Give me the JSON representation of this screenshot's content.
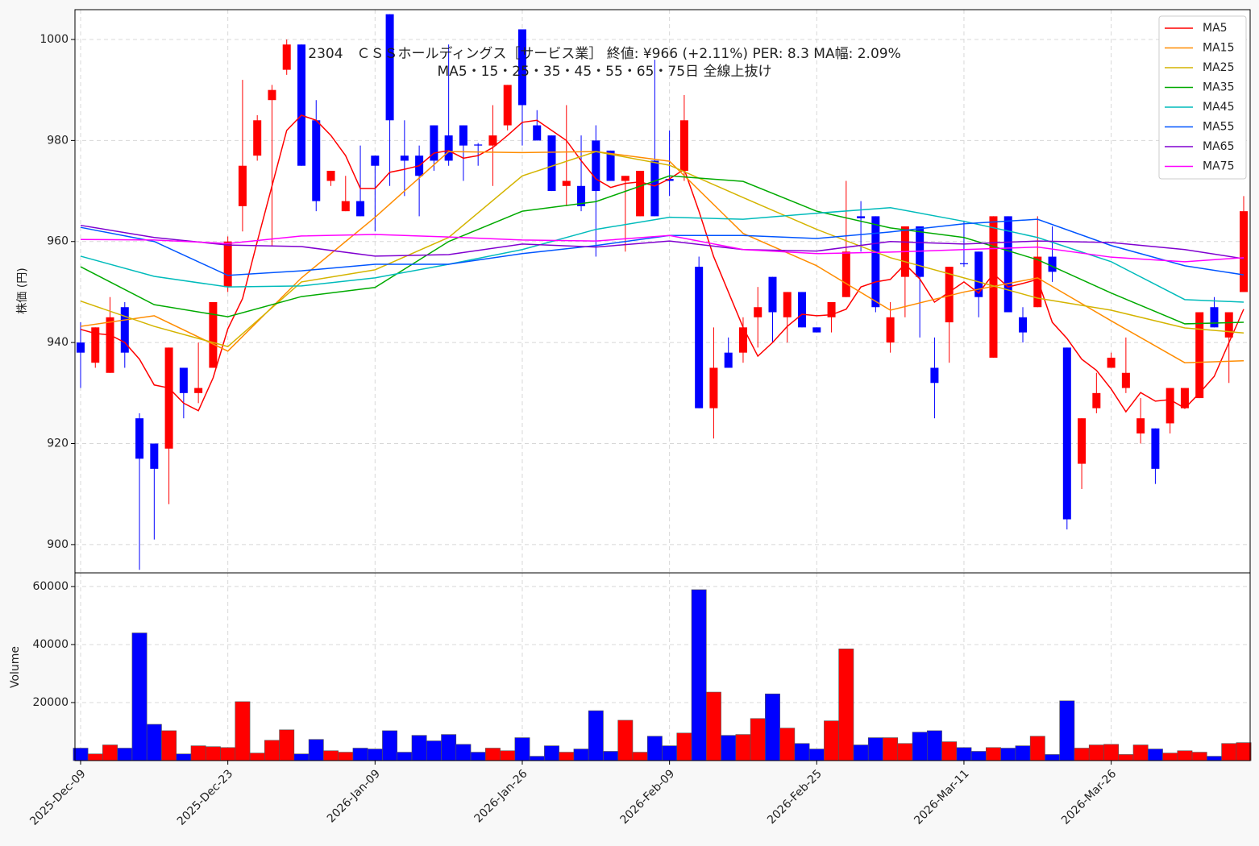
{
  "chart_data": [
    {
      "type": "candlestick",
      "title": [
        "2304　ＣＳＳホールディングス［サービス業］ 終値: ¥966 (+2.11%)   PER: 8.3  MA幅: 2.09%",
        "MA5・15・25・35・45・55・65・75日 全線上抜け"
      ],
      "ylabel": "株価 (円)",
      "ylim": [
        894.4,
        1005.9
      ],
      "yticks": [
        900,
        920,
        940,
        960,
        980,
        1000
      ],
      "grid": true,
      "up_color": "#ff0000",
      "down_color": "#0000ff",
      "open": [
        940,
        936,
        934,
        947,
        925,
        920,
        919,
        935,
        930,
        935,
        951,
        967,
        977,
        988,
        994,
        999,
        984,
        972,
        966,
        968,
        977,
        1005,
        977,
        977,
        983,
        981,
        983,
        979.2,
        979,
        983,
        1002,
        983,
        981,
        971,
        971,
        980,
        978,
        972,
        965,
        976,
        972.4,
        974,
        955,
        927,
        938,
        938,
        945,
        953,
        945,
        950,
        943,
        945,
        949,
        965,
        965,
        940,
        953,
        963,
        935,
        944,
        955.7,
        958,
        937,
        965,
        945,
        947,
        957,
        939,
        916,
        927,
        935,
        931,
        922,
        923,
        924,
        927,
        929,
        947,
        941,
        950
      ],
      "high": [
        944,
        943,
        949,
        948,
        926,
        920,
        939,
        935,
        940,
        948,
        961,
        992,
        985,
        991,
        1000,
        999,
        988,
        974,
        973,
        979,
        977,
        1005,
        984,
        979,
        983,
        999,
        983,
        979.5,
        987,
        991,
        1002,
        986,
        981,
        987,
        981,
        983,
        978,
        973,
        974,
        996,
        982,
        989,
        957,
        943,
        941,
        945,
        951,
        953,
        950,
        950,
        943,
        948,
        972,
        968,
        965,
        948,
        963,
        963,
        941,
        955,
        964,
        958,
        965,
        965,
        947,
        965,
        963,
        939,
        925,
        934,
        938,
        941,
        929,
        923,
        931,
        931,
        946,
        949,
        946,
        969
      ],
      "low": [
        931,
        935,
        934,
        935,
        895,
        901,
        908,
        925,
        928,
        935,
        950,
        962,
        976,
        959,
        993,
        975,
        966,
        971,
        966,
        965,
        962,
        971,
        969,
        965,
        974,
        975,
        972,
        975,
        971,
        982,
        979,
        980,
        970,
        967,
        966,
        957,
        972,
        958,
        965,
        965,
        969,
        972,
        927,
        921,
        935,
        936,
        939,
        940,
        940,
        943,
        942,
        942,
        949,
        958,
        946,
        938,
        945,
        941,
        925,
        936,
        955,
        945,
        937,
        946,
        940,
        947,
        952,
        903,
        911,
        926,
        935,
        930,
        920,
        912,
        922,
        927,
        929,
        943,
        932,
        950
      ],
      "close": [
        938,
        943,
        945,
        938,
        917,
        915,
        939,
        930,
        931,
        948,
        960,
        975,
        984,
        990,
        999,
        975,
        968,
        974,
        968,
        965,
        975,
        984,
        976,
        973,
        976,
        976,
        979,
        979,
        981,
        991,
        987,
        980,
        970,
        972,
        967,
        970,
        972,
        973,
        974,
        965,
        972,
        984,
        927,
        935,
        935,
        943,
        947,
        946,
        950,
        943,
        942,
        948,
        958,
        964.6,
        947,
        945,
        963,
        953,
        932,
        955,
        955.5,
        949,
        965,
        946,
        942,
        957,
        954,
        905,
        925,
        930,
        937,
        934,
        925,
        915,
        931,
        931,
        946,
        943,
        946,
        966
      ],
      "legend": "upper right",
      "series": [
        {
          "name": "MA5",
          "color": "#ff0000",
          "values": [
            942.6,
            941.8,
            941.5,
            940,
            936.7,
            931.6,
            931,
            928,
            926.5,
            933,
            942.7,
            948.7,
            960,
            971,
            982,
            985,
            984,
            981,
            977,
            970.5,
            970.5,
            973.7,
            974.3,
            975,
            977.5,
            978,
            976.5,
            977,
            978.6,
            981,
            983.6,
            984,
            982,
            980,
            976,
            972.4,
            970.7,
            971.5,
            971.8,
            971,
            972.4,
            974.3,
            966,
            957,
            950,
            943,
            937.3,
            940,
            943.2,
            945.6,
            945.3,
            945.5,
            946.6,
            951,
            952,
            952.5,
            955.5,
            952.6,
            948,
            950,
            952,
            949.8,
            953.6,
            951,
            951.7,
            952.5,
            944,
            940.8,
            936.7,
            934.5,
            930.8,
            926.3,
            930.1,
            928.4,
            928.7,
            927,
            930,
            933.3,
            940,
            946.6
          ]
        },
        {
          "name": "MA15",
          "color": "#ff8c00",
          "x": [
            0,
            5,
            10,
            15,
            20,
            25,
            30,
            35,
            40,
            45,
            50,
            55,
            60,
            65,
            70,
            75,
            79
          ],
          "values": [
            943.2,
            945.3,
            938.3,
            952.8,
            964.8,
            977.8,
            977.6,
            977.8,
            975.9,
            961.6,
            955.2,
            946.4,
            950,
            952.8,
            944.3,
            936,
            936.4
          ]
        },
        {
          "name": "MA25",
          "color": "#d4b400",
          "x": [
            0,
            5,
            10,
            15,
            20,
            25,
            30,
            35,
            40,
            45,
            50,
            55,
            60,
            65,
            70,
            75,
            79
          ],
          "values": [
            948.2,
            943.2,
            939.2,
            952,
            954.4,
            960.8,
            973,
            977.8,
            975.1,
            968.7,
            962.4,
            956.8,
            952.8,
            948.8,
            946.4,
            942.9,
            941.9
          ]
        },
        {
          "name": "MA35",
          "color": "#00aa00",
          "x": [
            0,
            5,
            10,
            15,
            20,
            25,
            30,
            35,
            40,
            45,
            50,
            55,
            60,
            65,
            70,
            75,
            79
          ],
          "values": [
            955,
            947.5,
            945.1,
            949.1,
            950.9,
            960,
            966,
            967.9,
            973,
            971.9,
            966,
            962.7,
            960.8,
            956.4,
            949.8,
            943.7,
            944
          ]
        },
        {
          "name": "MA45",
          "color": "#00bbbb",
          "x": [
            0,
            5,
            10,
            15,
            20,
            25,
            30,
            35,
            40,
            45,
            50,
            55,
            60,
            65,
            70,
            75,
            79
          ],
          "values": [
            957.1,
            953.1,
            951,
            951.2,
            952.8,
            955.5,
            958.4,
            962.4,
            964.8,
            964.4,
            965.6,
            966.7,
            964,
            960.8,
            956,
            948.5,
            948
          ]
        },
        {
          "name": "MA55",
          "color": "#0055ff",
          "x": [
            0,
            5,
            10,
            15,
            20,
            25,
            30,
            35,
            40,
            45,
            50,
            55,
            60,
            65,
            70,
            75,
            79
          ],
          "values": [
            962.8,
            960,
            953.3,
            954.2,
            955.5,
            955.5,
            957.6,
            959.2,
            961.2,
            961.2,
            960.6,
            961.9,
            963.5,
            964.4,
            959.2,
            955.2,
            953.4
          ]
        },
        {
          "name": "MA65",
          "color": "#8000d0",
          "x": [
            0,
            5,
            10,
            15,
            20,
            25,
            30,
            35,
            40,
            45,
            50,
            55,
            60,
            65,
            70,
            75,
            79
          ],
          "values": [
            963.2,
            960.8,
            959.3,
            959,
            957.1,
            957.4,
            959.5,
            958.9,
            960.1,
            958.4,
            958.1,
            960,
            959.5,
            960.1,
            959.8,
            958.4,
            956.6
          ]
        },
        {
          "name": "MA75",
          "color": "#ff00ff",
          "x": [
            0,
            5,
            10,
            15,
            20,
            25,
            30,
            35,
            40,
            45,
            50,
            55,
            60,
            65,
            70,
            75,
            79
          ],
          "values": [
            960.4,
            960.3,
            959.6,
            961.1,
            961.4,
            960.9,
            960.3,
            960.1,
            961.2,
            958.4,
            957.6,
            957.9,
            958.4,
            958.9,
            956.9,
            956,
            956.8
          ]
        }
      ]
    },
    {
      "type": "volume",
      "ylabel": "Volume",
      "ylim": [
        0,
        64700
      ],
      "yticks": [
        20000,
        40000,
        60000
      ],
      "grid": true,
      "categories": [
        "2025-Dec-09",
        null,
        null,
        null,
        null,
        null,
        null,
        null,
        null,
        null,
        "2025-Dec-23",
        null,
        null,
        null,
        null,
        null,
        null,
        null,
        null,
        null,
        "2026-Jan-09",
        null,
        null,
        null,
        null,
        null,
        null,
        null,
        null,
        null,
        "2026-Jan-26",
        null,
        null,
        null,
        null,
        null,
        null,
        null,
        null,
        null,
        "2026-Feb-09",
        null,
        null,
        null,
        null,
        null,
        null,
        null,
        null,
        null,
        "2026-Feb-25",
        null,
        null,
        null,
        null,
        null,
        null,
        null,
        null,
        null,
        "2026-Mar-11",
        null,
        null,
        null,
        null,
        null,
        null,
        null,
        null,
        null,
        "2026-Mar-26",
        null,
        null,
        null,
        null,
        null,
        null,
        null,
        null,
        null
      ],
      "values": [
        4300,
        2300,
        5400,
        4300,
        44000,
        12500,
        10300,
        2300,
        5100,
        4800,
        4500,
        20300,
        2600,
        7000,
        10600,
        2300,
        7300,
        3400,
        2900,
        4300,
        4000,
        10300,
        2900,
        8700,
        6800,
        9000,
        5600,
        2900,
        4300,
        3400,
        7900,
        1500,
        5100,
        2900,
        4000,
        17200,
        3200,
        13900,
        2900,
        8400,
        5100,
        9500,
        58900,
        23600,
        8700,
        9000,
        14500,
        23000,
        11200,
        5900,
        4000,
        13700,
        38500,
        5400,
        7900,
        7900,
        5900,
        9800,
        10300,
        6500,
        4500,
        3200,
        4500,
        4300,
        5100,
        8400,
        2100,
        20600,
        4300,
        5400,
        5600,
        2100,
        5400,
        4000,
        2600,
        3400,
        2900,
        1500,
        5900,
        6200
      ]
    }
  ]
}
